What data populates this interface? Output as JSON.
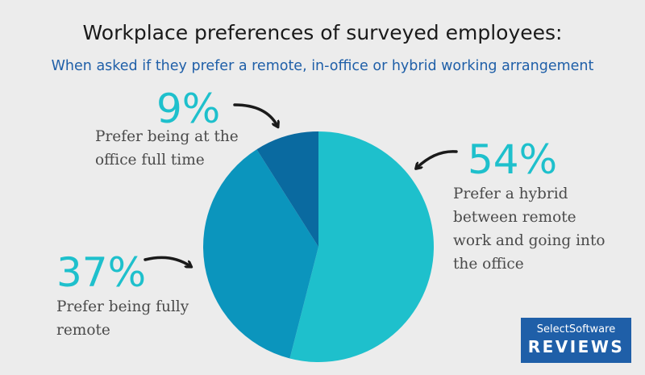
{
  "header": {
    "title": "Workplace preferences of surveyed employees:",
    "subtitle": "When asked if they prefer a remote, in-office or hybrid working arrangement"
  },
  "chart_data": {
    "type": "pie",
    "slices": [
      {
        "label_pct": "54%",
        "value": 54,
        "description": "Prefer a hybrid between remote work and going into the office",
        "desc_lines": [
          "Prefer a hybrid",
          "between remote",
          "work and going into",
          "the office"
        ],
        "color": "#1ec0cc"
      },
      {
        "label_pct": "37%",
        "value": 37,
        "description": "Prefer being fully remote",
        "desc_lines": [
          "Prefer being fully",
          "remote"
        ],
        "color": "#0b95bd"
      },
      {
        "label_pct": "9%",
        "value": 9,
        "description": "Prefer being at the office full time",
        "desc_lines": [
          "Prefer being at the",
          "office full time"
        ],
        "color": "#0a6aa0"
      }
    ]
  },
  "logo": {
    "line1": "SelectSoftware",
    "line2": "REVIEWS"
  },
  "colors": {
    "background": "#ececec",
    "accent": "#1ec0cc",
    "brand": "#1f5fa8"
  }
}
